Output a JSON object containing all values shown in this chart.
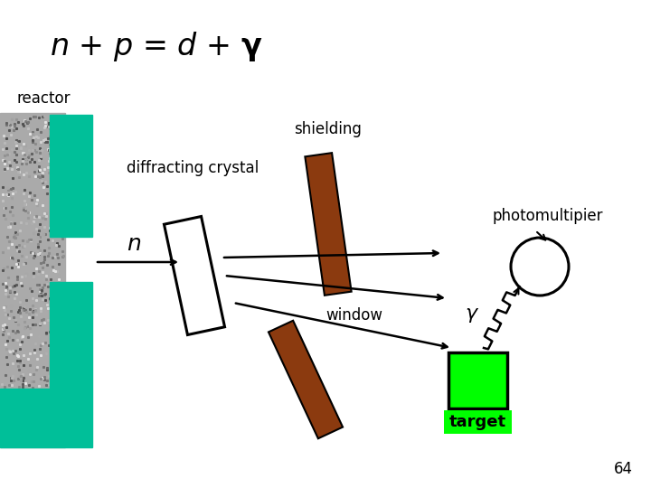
{
  "label_reactor": "reactor",
  "label_shielding": "shielding",
  "label_crystal": "diffracting crystal",
  "label_photomultipier": "photomultipier",
  "label_n": "n",
  "label_window": "window",
  "label_p": "p",
  "label_target": "target",
  "label_page": "64",
  "color_reactor_green": "#00BF99",
  "color_reactor_gray": "#AAAAAA",
  "color_shielding": "#8B3A0F",
  "color_green_target": "#00FF00",
  "bg_color": "#FFFFFF"
}
